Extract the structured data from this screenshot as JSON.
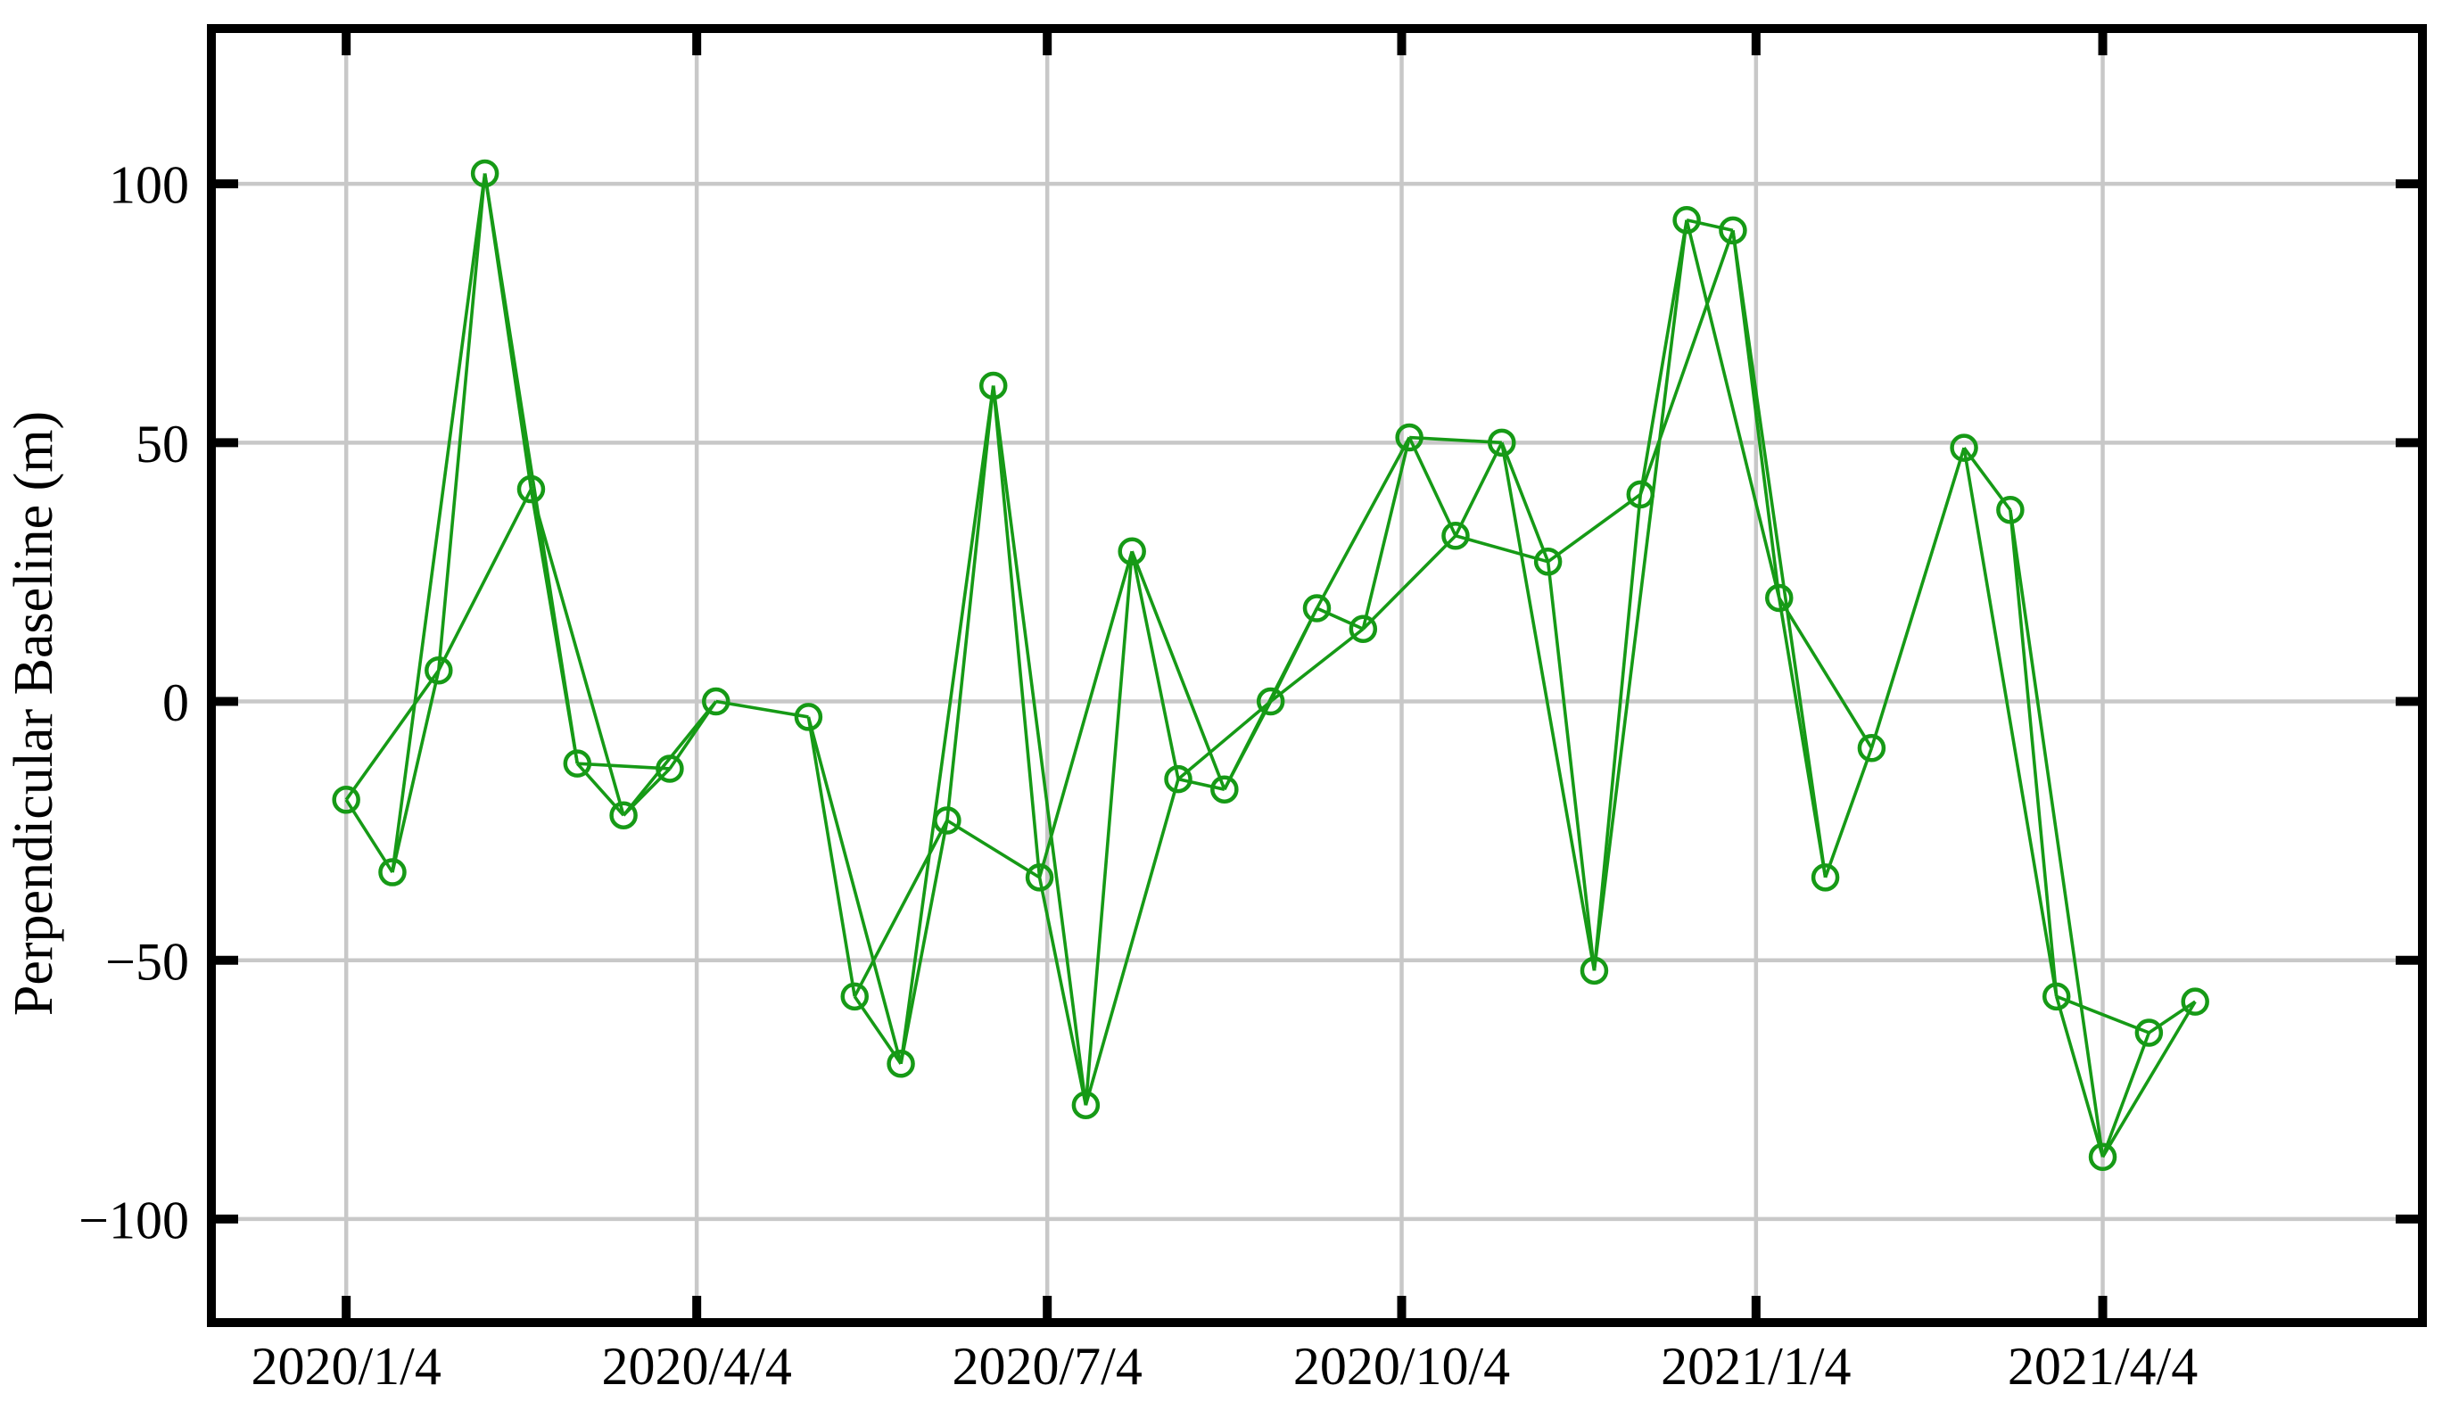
{
  "chart_data": {
    "type": "scatter",
    "title": "",
    "xlabel": "",
    "ylabel": "Perpendicular Baseline (m)",
    "grid": true,
    "legend": "none",
    "marker": "open-circle",
    "line_color": "#169a16",
    "grid_color": "#c8c8c8",
    "axis_color": "#000000",
    "background_color": "#ffffff",
    "ylim": [
      -120,
      130
    ],
    "xlim_days": [
      -35,
      539
    ],
    "y_ticks": [
      100,
      50,
      0,
      -50,
      -100
    ],
    "y_tick_labels": [
      "100",
      "50",
      "0",
      "−50",
      "−100"
    ],
    "x_ticks": [
      {
        "label": "2020/1/4",
        "days": 0
      },
      {
        "label": "2020/4/4",
        "days": 91
      },
      {
        "label": "2020/7/4",
        "days": 182
      },
      {
        "label": "2020/10/4",
        "days": 274
      },
      {
        "label": "2021/1/4",
        "days": 366
      },
      {
        "label": "2021/4/4",
        "days": 456
      }
    ],
    "points": [
      {
        "date": "2020/1/4",
        "days": 0,
        "baseline_m": -19
      },
      {
        "date": "2020/1/16",
        "days": 12,
        "baseline_m": -33
      },
      {
        "date": "2020/1/28",
        "days": 24,
        "baseline_m": 6
      },
      {
        "date": "2020/2/9",
        "days": 36,
        "baseline_m": 102
      },
      {
        "date": "2020/2/21",
        "days": 48,
        "baseline_m": 41
      },
      {
        "date": "2020/3/4",
        "days": 60,
        "baseline_m": -12
      },
      {
        "date": "2020/3/16",
        "days": 72,
        "baseline_m": -22
      },
      {
        "date": "2020/3/28",
        "days": 84,
        "baseline_m": -13
      },
      {
        "date": "2020/4/9",
        "days": 96,
        "baseline_m": 0
      },
      {
        "date": "2020/5/3",
        "days": 120,
        "baseline_m": -3
      },
      {
        "date": "2020/5/15",
        "days": 132,
        "baseline_m": -57
      },
      {
        "date": "2020/5/27",
        "days": 144,
        "baseline_m": -70
      },
      {
        "date": "2020/6/8",
        "days": 156,
        "baseline_m": -23
      },
      {
        "date": "2020/6/20",
        "days": 168,
        "baseline_m": 61
      },
      {
        "date": "2020/7/2",
        "days": 180,
        "baseline_m": -34
      },
      {
        "date": "2020/7/14",
        "days": 192,
        "baseline_m": -78
      },
      {
        "date": "2020/7/26",
        "days": 204,
        "baseline_m": 29
      },
      {
        "date": "2020/8/7",
        "days": 216,
        "baseline_m": -15
      },
      {
        "date": "2020/8/19",
        "days": 228,
        "baseline_m": -17
      },
      {
        "date": "2020/8/31",
        "days": 240,
        "baseline_m": 0
      },
      {
        "date": "2020/9/12",
        "days": 252,
        "baseline_m": 18
      },
      {
        "date": "2020/9/24",
        "days": 264,
        "baseline_m": 14
      },
      {
        "date": "2020/10/6",
        "days": 276,
        "baseline_m": 51
      },
      {
        "date": "2020/10/18",
        "days": 288,
        "baseline_m": 32
      },
      {
        "date": "2020/10/30",
        "days": 300,
        "baseline_m": 50
      },
      {
        "date": "2020/11/11",
        "days": 312,
        "baseline_m": 27
      },
      {
        "date": "2020/11/23",
        "days": 324,
        "baseline_m": -52
      },
      {
        "date": "2020/12/5",
        "days": 336,
        "baseline_m": 40
      },
      {
        "date": "2020/12/17",
        "days": 348,
        "baseline_m": 93
      },
      {
        "date": "2020/12/29",
        "days": 360,
        "baseline_m": 91
      },
      {
        "date": "2021/1/10",
        "days": 372,
        "baseline_m": 20
      },
      {
        "date": "2021/1/22",
        "days": 384,
        "baseline_m": -34
      },
      {
        "date": "2021/2/3",
        "days": 396,
        "baseline_m": -9
      },
      {
        "date": "2021/2/27",
        "days": 420,
        "baseline_m": 49
      },
      {
        "date": "2021/3/11",
        "days": 432,
        "baseline_m": 37
      },
      {
        "date": "2021/3/23",
        "days": 444,
        "baseline_m": -57
      },
      {
        "date": "2021/4/4",
        "days": 456,
        "baseline_m": -88
      },
      {
        "date": "2021/4/16",
        "days": 468,
        "baseline_m": -64
      },
      {
        "date": "2021/4/28",
        "days": 480,
        "baseline_m": -58
      }
    ],
    "edges": [
      [
        1,
        2
      ],
      [
        1,
        3
      ],
      [
        2,
        3
      ],
      [
        2,
        4
      ],
      [
        3,
        4
      ],
      [
        3,
        5
      ],
      [
        4,
        5
      ],
      [
        4,
        6
      ],
      [
        5,
        6
      ],
      [
        5,
        7
      ],
      [
        6,
        7
      ],
      [
        6,
        8
      ],
      [
        7,
        8
      ],
      [
        7,
        9
      ],
      [
        8,
        9
      ],
      [
        9,
        10
      ],
      [
        10,
        11
      ],
      [
        10,
        12
      ],
      [
        11,
        12
      ],
      [
        11,
        13
      ],
      [
        12,
        13
      ],
      [
        12,
        14
      ],
      [
        13,
        14
      ],
      [
        13,
        15
      ],
      [
        14,
        15
      ],
      [
        14,
        16
      ],
      [
        15,
        16
      ],
      [
        15,
        17
      ],
      [
        16,
        17
      ],
      [
        16,
        18
      ],
      [
        17,
        18
      ],
      [
        17,
        19
      ],
      [
        18,
        19
      ],
      [
        18,
        20
      ],
      [
        19,
        20
      ],
      [
        19,
        21
      ],
      [
        20,
        21
      ],
      [
        20,
        22
      ],
      [
        21,
        22
      ],
      [
        21,
        23
      ],
      [
        22,
        23
      ],
      [
        22,
        24
      ],
      [
        23,
        24
      ],
      [
        23,
        25
      ],
      [
        24,
        25
      ],
      [
        24,
        26
      ],
      [
        25,
        26
      ],
      [
        25,
        27
      ],
      [
        26,
        27
      ],
      [
        26,
        28
      ],
      [
        27,
        28
      ],
      [
        27,
        29
      ],
      [
        28,
        29
      ],
      [
        28,
        30
      ],
      [
        29,
        30
      ],
      [
        29,
        31
      ],
      [
        30,
        31
      ],
      [
        30,
        32
      ],
      [
        31,
        32
      ],
      [
        31,
        33
      ],
      [
        32,
        33
      ],
      [
        33,
        34
      ],
      [
        34,
        35
      ],
      [
        34,
        36
      ],
      [
        35,
        36
      ],
      [
        35,
        37
      ],
      [
        36,
        37
      ],
      [
        36,
        38
      ],
      [
        37,
        38
      ],
      [
        37,
        39
      ],
      [
        38,
        39
      ]
    ]
  }
}
